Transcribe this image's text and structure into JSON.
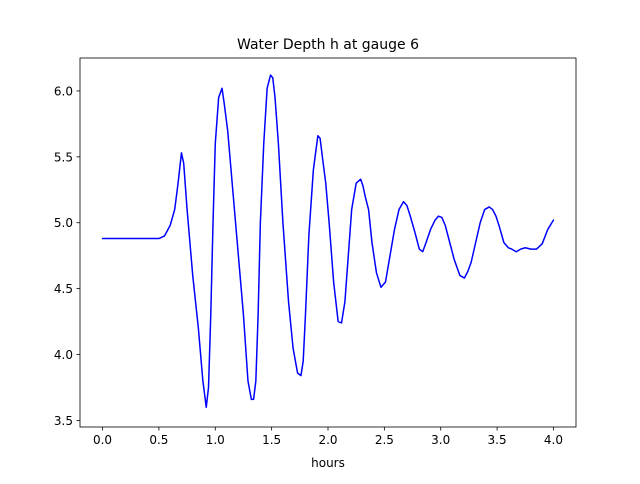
{
  "chart_data": {
    "type": "line",
    "title": "Water Depth h at gauge 6",
    "xlabel": "hours",
    "ylabel": "",
    "xlim": [
      -0.2,
      4.2
    ],
    "ylim": [
      3.45,
      6.25
    ],
    "xticks": [
      0.0,
      0.5,
      1.0,
      1.5,
      2.0,
      2.5,
      3.0,
      3.5,
      4.0
    ],
    "xtick_labels": [
      "0.0",
      "0.5",
      "1.0",
      "1.5",
      "2.0",
      "2.5",
      "3.0",
      "3.5",
      "4.0"
    ],
    "yticks": [
      3.5,
      4.0,
      4.5,
      5.0,
      5.5,
      6.0
    ],
    "ytick_labels": [
      "3.5",
      "4.0",
      "4.5",
      "5.0",
      "5.5",
      "6.0"
    ],
    "grid": false,
    "legend": "none",
    "series": [
      {
        "color": "#0000ff",
        "x": [
          0.0,
          0.1,
          0.2,
          0.3,
          0.4,
          0.5,
          0.55,
          0.6,
          0.64,
          0.67,
          0.7,
          0.72,
          0.75,
          0.8,
          0.85,
          0.89,
          0.92,
          0.94,
          0.96,
          0.98,
          1.0,
          1.03,
          1.06,
          1.08,
          1.11,
          1.15,
          1.2,
          1.25,
          1.29,
          1.32,
          1.34,
          1.36,
          1.38,
          1.4,
          1.43,
          1.46,
          1.49,
          1.51,
          1.53,
          1.56,
          1.6,
          1.65,
          1.69,
          1.73,
          1.76,
          1.78,
          1.8,
          1.83,
          1.87,
          1.91,
          1.93,
          1.95,
          1.98,
          2.01,
          2.05,
          2.09,
          2.12,
          2.15,
          2.18,
          2.21,
          2.25,
          2.29,
          2.31,
          2.33,
          2.36,
          2.39,
          2.43,
          2.47,
          2.51,
          2.55,
          2.59,
          2.63,
          2.67,
          2.7,
          2.73,
          2.77,
          2.81,
          2.84,
          2.87,
          2.91,
          2.95,
          2.98,
          3.01,
          3.04,
          3.08,
          3.12,
          3.17,
          3.21,
          3.24,
          3.27,
          3.31,
          3.35,
          3.39,
          3.43,
          3.46,
          3.49,
          3.52,
          3.56,
          3.6,
          3.63,
          3.67,
          3.71,
          3.75,
          3.8,
          3.85,
          3.9,
          3.95,
          4.0
        ],
        "y": [
          4.88,
          4.88,
          4.88,
          4.88,
          4.88,
          4.88,
          4.9,
          4.98,
          5.1,
          5.3,
          5.53,
          5.45,
          5.1,
          4.6,
          4.2,
          3.8,
          3.6,
          3.75,
          4.3,
          5.0,
          5.6,
          5.95,
          6.02,
          5.9,
          5.7,
          5.3,
          4.8,
          4.3,
          3.8,
          3.66,
          3.66,
          3.8,
          4.3,
          5.0,
          5.6,
          6.02,
          6.12,
          6.1,
          5.95,
          5.6,
          5.0,
          4.4,
          4.05,
          3.86,
          3.84,
          3.95,
          4.3,
          4.9,
          5.4,
          5.66,
          5.64,
          5.5,
          5.3,
          5.0,
          4.55,
          4.25,
          4.24,
          4.4,
          4.75,
          5.1,
          5.3,
          5.33,
          5.28,
          5.2,
          5.1,
          4.85,
          4.62,
          4.51,
          4.55,
          4.75,
          4.95,
          5.1,
          5.16,
          5.13,
          5.05,
          4.93,
          4.8,
          4.78,
          4.85,
          4.95,
          5.02,
          5.05,
          5.04,
          4.98,
          4.85,
          4.72,
          4.6,
          4.58,
          4.63,
          4.7,
          4.85,
          5.0,
          5.1,
          5.12,
          5.1,
          5.05,
          4.97,
          4.85,
          4.81,
          4.8,
          4.78,
          4.8,
          4.81,
          4.8,
          4.8,
          4.84,
          4.95,
          5.02
        ]
      }
    ]
  }
}
